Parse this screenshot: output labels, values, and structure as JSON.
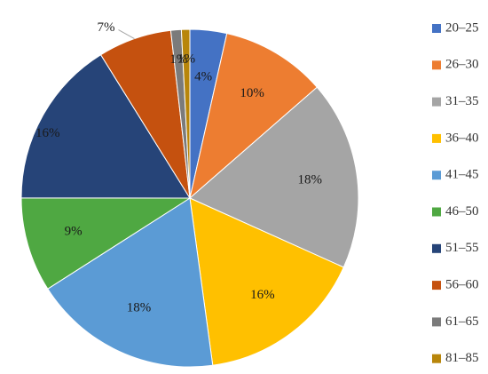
{
  "chart_data": {
    "type": "pie",
    "title": "",
    "legend_position": "right",
    "slices": [
      {
        "label": "20–25",
        "value": 3.5,
        "display": "4%",
        "color": "#4472C4"
      },
      {
        "label": "26–30",
        "value": 10,
        "display": "10%",
        "color": "#ED7D31"
      },
      {
        "label": "31–35",
        "value": 18,
        "display": "18%",
        "color": "#A5A5A5"
      },
      {
        "label": "36–40",
        "value": 16,
        "display": "16%",
        "color": "#FFC000"
      },
      {
        "label": "41–45",
        "value": 18,
        "display": "18%",
        "color": "#5B9BD5"
      },
      {
        "label": "46–50",
        "value": 9,
        "display": "9%",
        "color": "#4FA842"
      },
      {
        "label": "51–55",
        "value": 16,
        "display": "16%",
        "color": "#264478"
      },
      {
        "label": "56–60",
        "value": 7,
        "display": "7%",
        "color": "#C5510F"
      },
      {
        "label": "61–65",
        "value": 1,
        "display": "1%",
        "color": "#7B7B7B"
      },
      {
        "label": "81–85",
        "value": 0.8,
        "display": "1%",
        "color": "#B8860B"
      }
    ]
  }
}
